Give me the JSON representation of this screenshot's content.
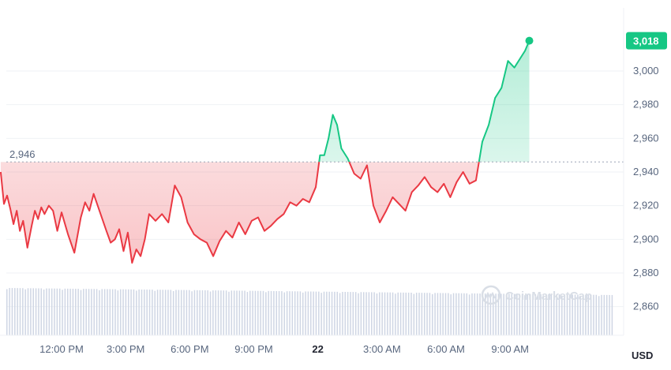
{
  "chart_data": {
    "type": "area",
    "baseline": 2946,
    "baseline_label": "2,946",
    "current_value": 3018,
    "current_label": "3,018",
    "y_axis": {
      "min": 2845,
      "max": 3030,
      "ticks": [
        2860,
        2880,
        2900,
        2920,
        2940,
        2960,
        2980,
        3000
      ],
      "tick_labels": [
        "2,860",
        "2,880",
        "2,900",
        "2,920",
        "2,940",
        "2,960",
        "2,980",
        "3,000"
      ]
    },
    "x_axis": {
      "tick_labels": [
        "12:00 PM",
        "3:00 PM",
        "6:00 PM",
        "9:00 PM",
        "22",
        "3:00 AM",
        "6:00 AM",
        "9:00 AM"
      ],
      "tick_hours": [
        12,
        15,
        18,
        21,
        24,
        27,
        30,
        33
      ],
      "unit_label": "USD"
    },
    "series": [
      {
        "hour": [
          9.15,
          9.3,
          9.45,
          9.6,
          9.75,
          9.9,
          10.05,
          10.2,
          10.4,
          10.6,
          10.75,
          10.9,
          11.05,
          11.2,
          11.4,
          11.6,
          11.8,
          12.0,
          12.3,
          12.6,
          12.9,
          13.1,
          13.3,
          13.5,
          13.8,
          14.1,
          14.3,
          14.5,
          14.7,
          14.9,
          15.1,
          15.3,
          15.5,
          15.7,
          15.9,
          16.1,
          16.4,
          16.7,
          17.0,
          17.3,
          17.6,
          17.9,
          18.2,
          18.5,
          18.8,
          19.1,
          19.4,
          19.7,
          20.0,
          20.3,
          20.6,
          20.9,
          21.2,
          21.5,
          21.8,
          22.1,
          22.4,
          22.7,
          23.0,
          23.3,
          23.6,
          23.9,
          24.1,
          24.3,
          24.5,
          24.7,
          24.9,
          25.1,
          25.4,
          25.7,
          26.0,
          26.3,
          26.6,
          26.9,
          27.2,
          27.5,
          27.8,
          28.1,
          28.4,
          28.7,
          29.0,
          29.3,
          29.6,
          29.9,
          30.2,
          30.5,
          30.8,
          31.1,
          31.4,
          31.7,
          32.0,
          32.3,
          32.6,
          32.9,
          33.2,
          33.5,
          33.7,
          33.9
        ],
        "values": [
          2940,
          2921,
          2926,
          2918,
          2909,
          2917,
          2905,
          2911,
          2895,
          2908,
          2917,
          2912,
          2919,
          2915,
          2920,
          2917,
          2905,
          2916,
          2903,
          2892,
          2913,
          2922,
          2917,
          2927,
          2916,
          2905,
          2898,
          2900,
          2906,
          2893,
          2904,
          2886,
          2894,
          2890,
          2900,
          2915,
          2911,
          2915,
          2910,
          2932,
          2925,
          2910,
          2903,
          2900,
          2898,
          2890,
          2899,
          2905,
          2901,
          2910,
          2903,
          2911,
          2913,
          2905,
          2908,
          2912,
          2915,
          2922,
          2920,
          2924,
          2922,
          2931,
          2950,
          2950,
          2960,
          2974,
          2968,
          2954,
          2948,
          2939,
          2936,
          2944,
          2920,
          2910,
          2917,
          2925,
          2921,
          2917,
          2928,
          2932,
          2937,
          2931,
          2928,
          2933,
          2925,
          2934,
          2940,
          2933,
          2935,
          2958,
          2968,
          2984,
          2990,
          3006,
          3002,
          3008,
          3012,
          3018
        ]
      }
    ],
    "volume_bar_count": 230,
    "colors": {
      "up": "#16c784",
      "down": "#ea3943",
      "axis_text": "#58667e",
      "grid": "#eff2f5",
      "volume": "#cfd6e4"
    },
    "watermark": "CoinMarketCap",
    "grid": true
  }
}
